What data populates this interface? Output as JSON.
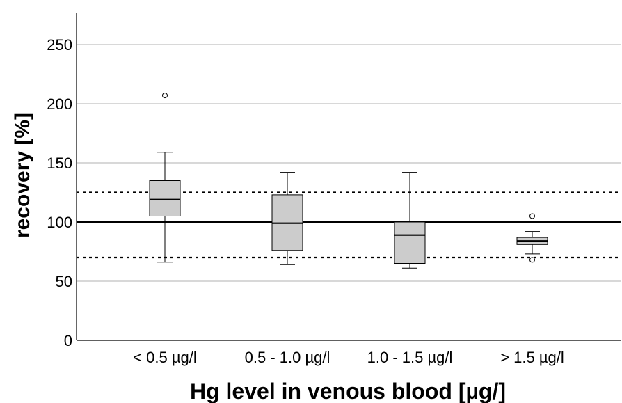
{
  "chart_data": {
    "type": "box",
    "title": "",
    "xlabel": "Hg level in venous blood [µg/]",
    "ylabel": "recovery [%]",
    "ylim": [
      0,
      270
    ],
    "yticks": [
      0,
      50,
      100,
      150,
      200,
      250
    ],
    "ytick_labels": [
      "0",
      "50",
      "100",
      "150",
      "200",
      "250"
    ],
    "grid": "horizontal",
    "categories": [
      "< 0.5 µg/l",
      "0.5 - 1.0 µg/l",
      "1.0 - 1.5 µg/l",
      "> 1.5 µg/l"
    ],
    "boxes": [
      {
        "category": "< 0.5 µg/l",
        "whisker_low": 66,
        "q1": 105,
        "median": 119,
        "q3": 135,
        "whisker_high": 159,
        "outliers": [
          207
        ]
      },
      {
        "category": "0.5 - 1.0 µg/l",
        "whisker_low": 64,
        "q1": 76,
        "median": 99,
        "q3": 123,
        "whisker_high": 142,
        "outliers": []
      },
      {
        "category": "1.0 - 1.5 µg/l",
        "whisker_low": 61,
        "q1": 65,
        "median": 89,
        "q3": 100,
        "whisker_high": 142,
        "outliers": []
      },
      {
        "category": "> 1.5 µg/l",
        "whisker_low": 73,
        "q1": 81,
        "median": 84,
        "q3": 87,
        "whisker_high": 92,
        "outliers": [
          68,
          105
        ]
      }
    ],
    "reference_lines": [
      {
        "value": 100,
        "style": "solid"
      },
      {
        "value": 125,
        "style": "dotted"
      },
      {
        "value": 70,
        "style": "dotted"
      }
    ],
    "colors": {
      "box_fill": "#cccccc",
      "line": "#000000",
      "grid": "#b0b0b0"
    }
  }
}
